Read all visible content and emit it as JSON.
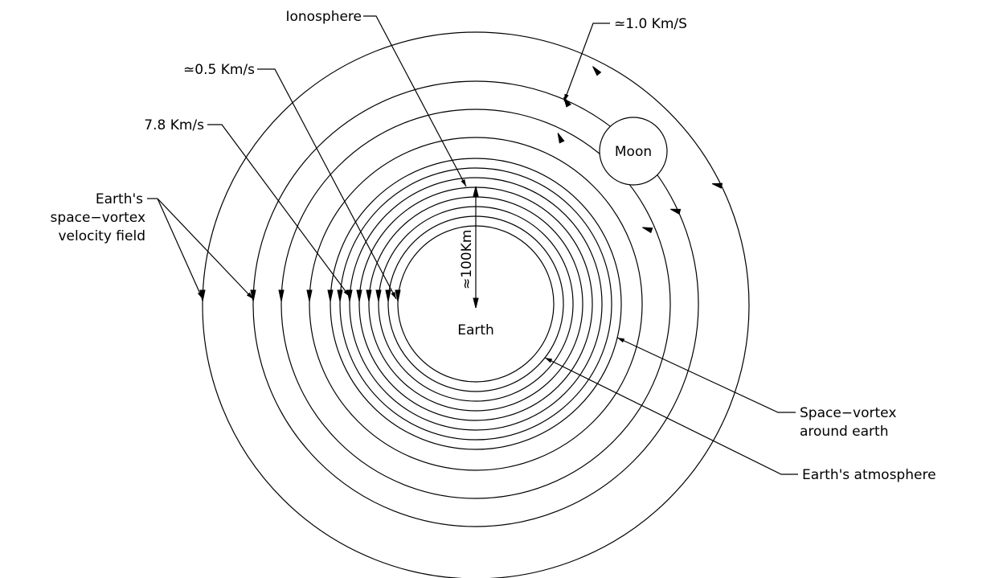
{
  "labels": {
    "ionosphere": "Ionosphere",
    "speed_outer": "≃1.0  Km/S",
    "speed_mid": "≃0.5  Km/s",
    "speed_inner": "7.8  Km/s",
    "velocity_field_1": "Earth's",
    "velocity_field_2": "space−vortex",
    "velocity_field_3": "velocity field",
    "height": "≈100Km",
    "earth": "Earth",
    "moon": "Moon",
    "vortex_1": "Space−vortex",
    "vortex_2": "around earth",
    "atmosphere": "Earth's  atmosphere"
  },
  "colors": {
    "line": "#000000",
    "background": "#ffffff"
  }
}
